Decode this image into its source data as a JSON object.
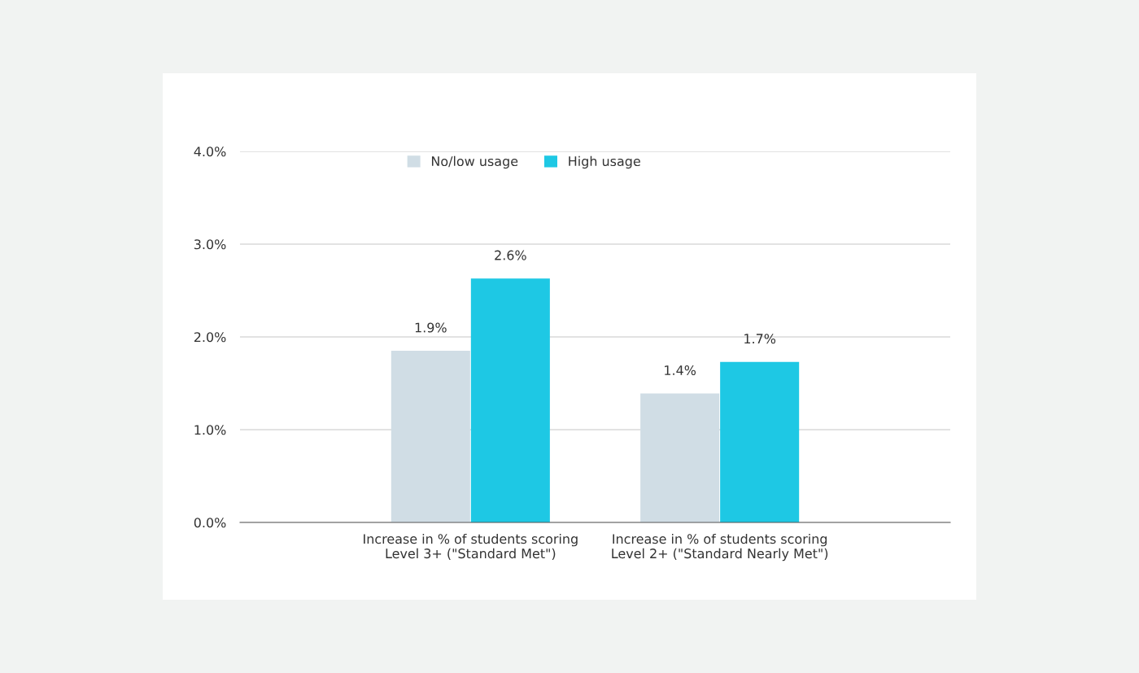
{
  "chart_data": {
    "type": "bar",
    "categories": [
      "Increase in % of students scoring\nLevel 3+ (\"Standard Met\")",
      "Increase in % of students scoring\nLevel 2+ (\"Standard Nearly Met\")"
    ],
    "series": [
      {
        "name": "No/low usage",
        "color": "#d0dde5",
        "values": [
          1.85,
          1.39
        ],
        "value_labels": [
          "1.9%",
          "1.4%"
        ]
      },
      {
        "name": "High usage",
        "color": "#1ec8e4",
        "values": [
          2.63,
          1.73
        ],
        "value_labels": [
          "2.6%",
          "1.7%"
        ]
      }
    ],
    "ylim": [
      0,
      4
    ],
    "yticks": [
      {
        "value": 0,
        "label": "0.0%"
      },
      {
        "value": 1,
        "label": "1.0%"
      },
      {
        "value": 2,
        "label": "2.0%"
      },
      {
        "value": 3,
        "label": "3.0%"
      },
      {
        "value": 4,
        "label": "4.0%"
      }
    ],
    "grid": "y",
    "legend": "top"
  }
}
